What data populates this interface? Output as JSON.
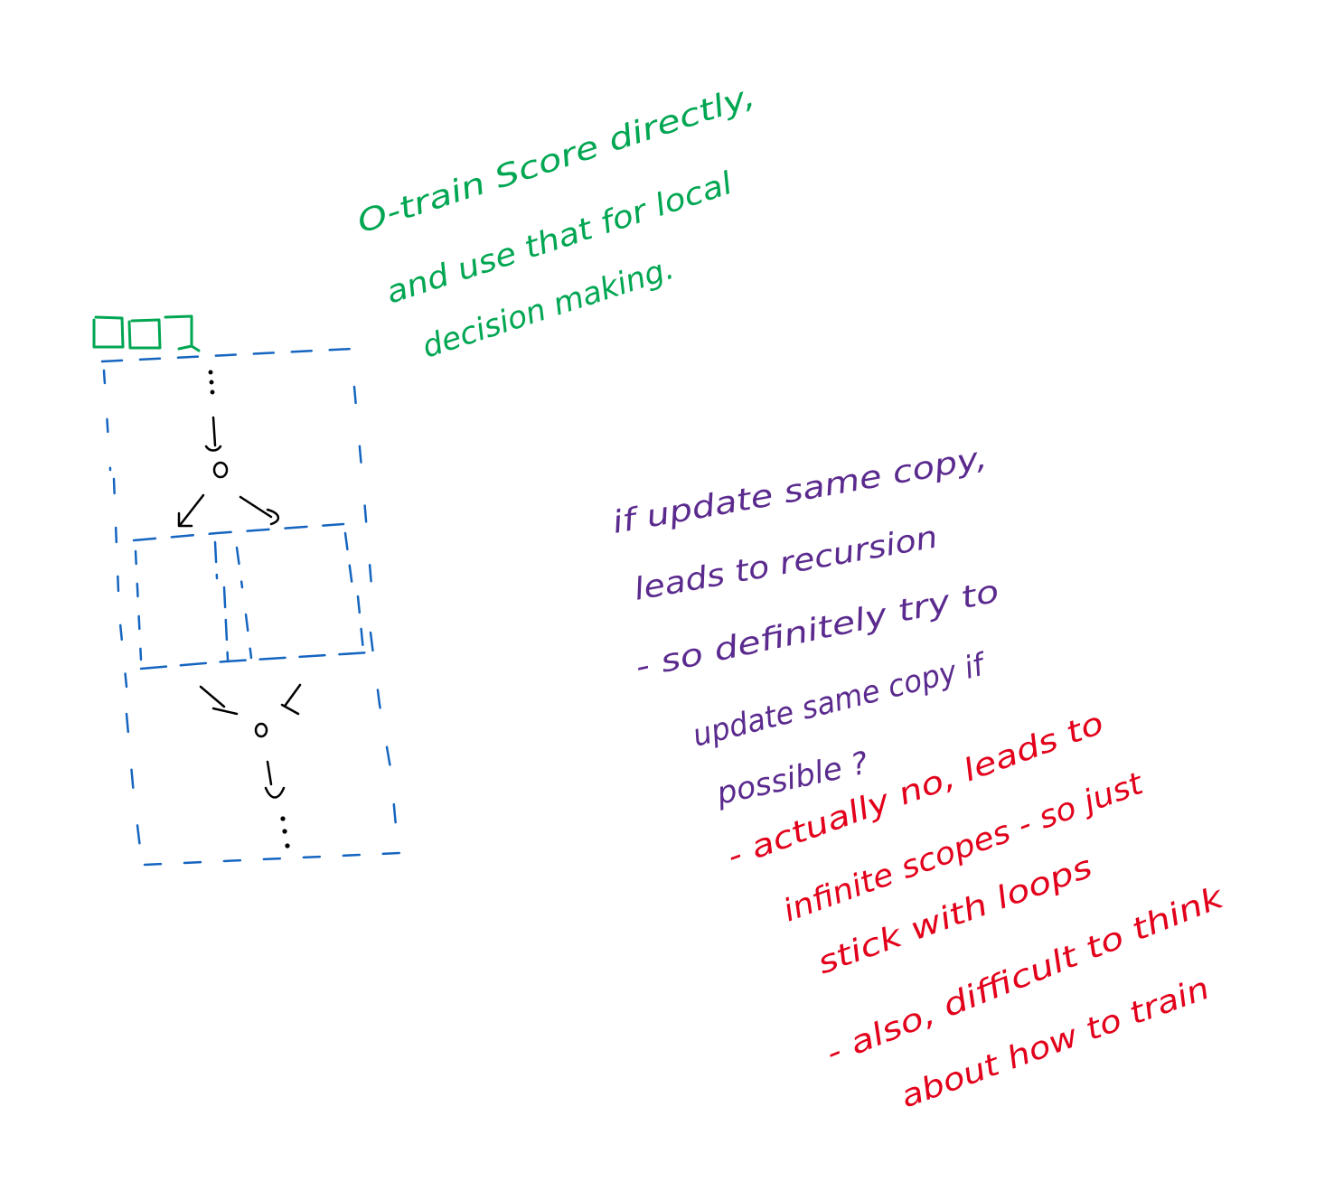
{
  "colors": {
    "black": "#000000",
    "blue": "#1565c0",
    "green": "#00a651",
    "purple": "#5b2a8e",
    "red": "#e2001a",
    "background": "#ffffff"
  },
  "notes": {
    "green": {
      "line1": "O-train Score directly,",
      "line2": "and use that for local",
      "line3": "decision making."
    },
    "purple": {
      "line1": "if update same copy,",
      "line2": "leads to recursion",
      "line3": "- so definitely try to",
      "line4": "update same copy if",
      "line5": "possible ?"
    },
    "red": {
      "line1": "- actually no, leads to",
      "line2": "infinite scopes - so just",
      "line3": "stick with loops",
      "line4": "- also, difficult to think",
      "line5": "about how to train"
    }
  },
  "diagram": {
    "node_top_label": "o",
    "node_bottom_label": "o",
    "ellipsis": "⋮"
  }
}
